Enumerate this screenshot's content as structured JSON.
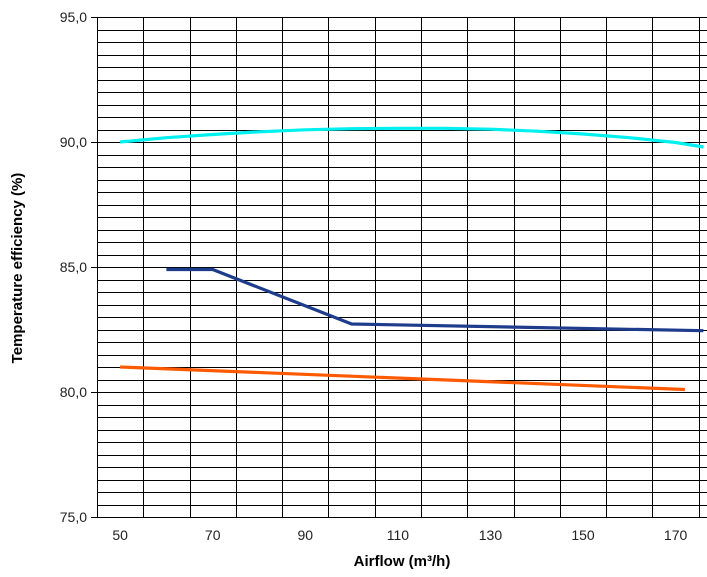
{
  "chart_data": {
    "type": "line",
    "title": "",
    "xlabel": "Airflow (m³/h)",
    "ylabel": "Temperature efficiency (%)",
    "xlim": [
      45,
      177
    ],
    "ylim": [
      75,
      95
    ],
    "x_ticks": [
      50,
      70,
      90,
      110,
      130,
      150,
      170
    ],
    "x_tick_labels": [
      "50",
      "70",
      "90",
      "110",
      "130",
      "150",
      "170"
    ],
    "y_ticks": [
      75,
      80,
      85,
      90,
      95
    ],
    "y_tick_labels": [
      "75,0",
      "80,0",
      "85,0",
      "90,0",
      "95,0"
    ],
    "x_grid_values": [
      45,
      55,
      65,
      75,
      85,
      95,
      105,
      115,
      125,
      135,
      145,
      155,
      165,
      175
    ],
    "y_grid_step": 0.5,
    "grid": true,
    "legend": "none",
    "series": [
      {
        "color": "#00f0f0",
        "x": [
          50,
          60,
          70,
          80,
          90,
          100,
          110,
          120,
          130,
          140,
          150,
          160,
          170,
          176
        ],
        "y": [
          90.0,
          90.17,
          90.3,
          90.41,
          90.49,
          90.53,
          90.55,
          90.55,
          90.51,
          90.43,
          90.32,
          90.17,
          89.98,
          89.8
        ]
      },
      {
        "color": "#1e3c8c",
        "x": [
          60,
          70,
          100,
          176
        ],
        "y": [
          84.9,
          84.9,
          82.72,
          82.45
        ]
      },
      {
        "color": "#ff5a00",
        "x": [
          50,
          172
        ],
        "y": [
          81.0,
          80.1
        ]
      }
    ]
  }
}
